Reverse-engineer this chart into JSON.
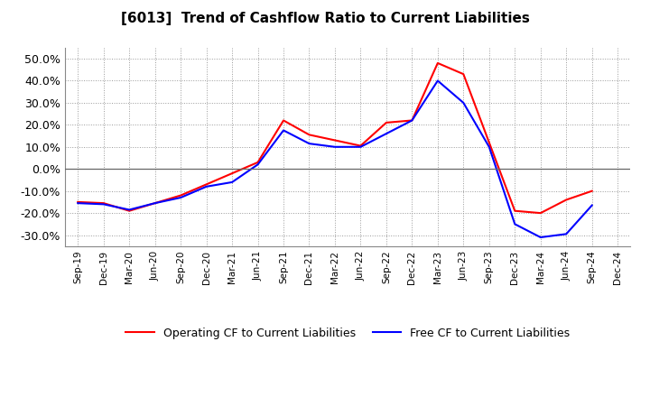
{
  "title": "[6013]  Trend of Cashflow Ratio to Current Liabilities",
  "x_labels": [
    "Sep-19",
    "Dec-19",
    "Mar-20",
    "Jun-20",
    "Sep-20",
    "Dec-20",
    "Mar-21",
    "Jun-21",
    "Sep-21",
    "Dec-21",
    "Mar-22",
    "Jun-22",
    "Sep-22",
    "Dec-22",
    "Mar-23",
    "Jun-23",
    "Sep-23",
    "Dec-23",
    "Mar-24",
    "Jun-24",
    "Sep-24",
    "Dec-24"
  ],
  "operating_cf": [
    -0.15,
    -0.155,
    -0.19,
    -0.155,
    -0.12,
    -0.07,
    -0.02,
    0.03,
    0.22,
    0.155,
    0.13,
    0.105,
    0.21,
    0.22,
    0.48,
    0.43,
    0.12,
    -0.19,
    -0.2,
    -0.14,
    -0.1,
    null
  ],
  "free_cf": [
    -0.155,
    -0.16,
    -0.185,
    -0.155,
    -0.13,
    -0.08,
    -0.06,
    0.02,
    0.175,
    0.115,
    0.1,
    0.1,
    0.16,
    0.22,
    0.4,
    0.3,
    0.1,
    -0.25,
    -0.31,
    -0.295,
    -0.165,
    null
  ],
  "ylim": [
    -0.35,
    0.55
  ],
  "yticks": [
    -0.3,
    -0.2,
    -0.1,
    0.0,
    0.1,
    0.2,
    0.3,
    0.4,
    0.5
  ],
  "operating_color": "#ff0000",
  "free_color": "#0000ff",
  "background_color": "#ffffff",
  "grid_color": "#999999",
  "legend_labels": [
    "Operating CF to Current Liabilities",
    "Free CF to Current Liabilities"
  ]
}
